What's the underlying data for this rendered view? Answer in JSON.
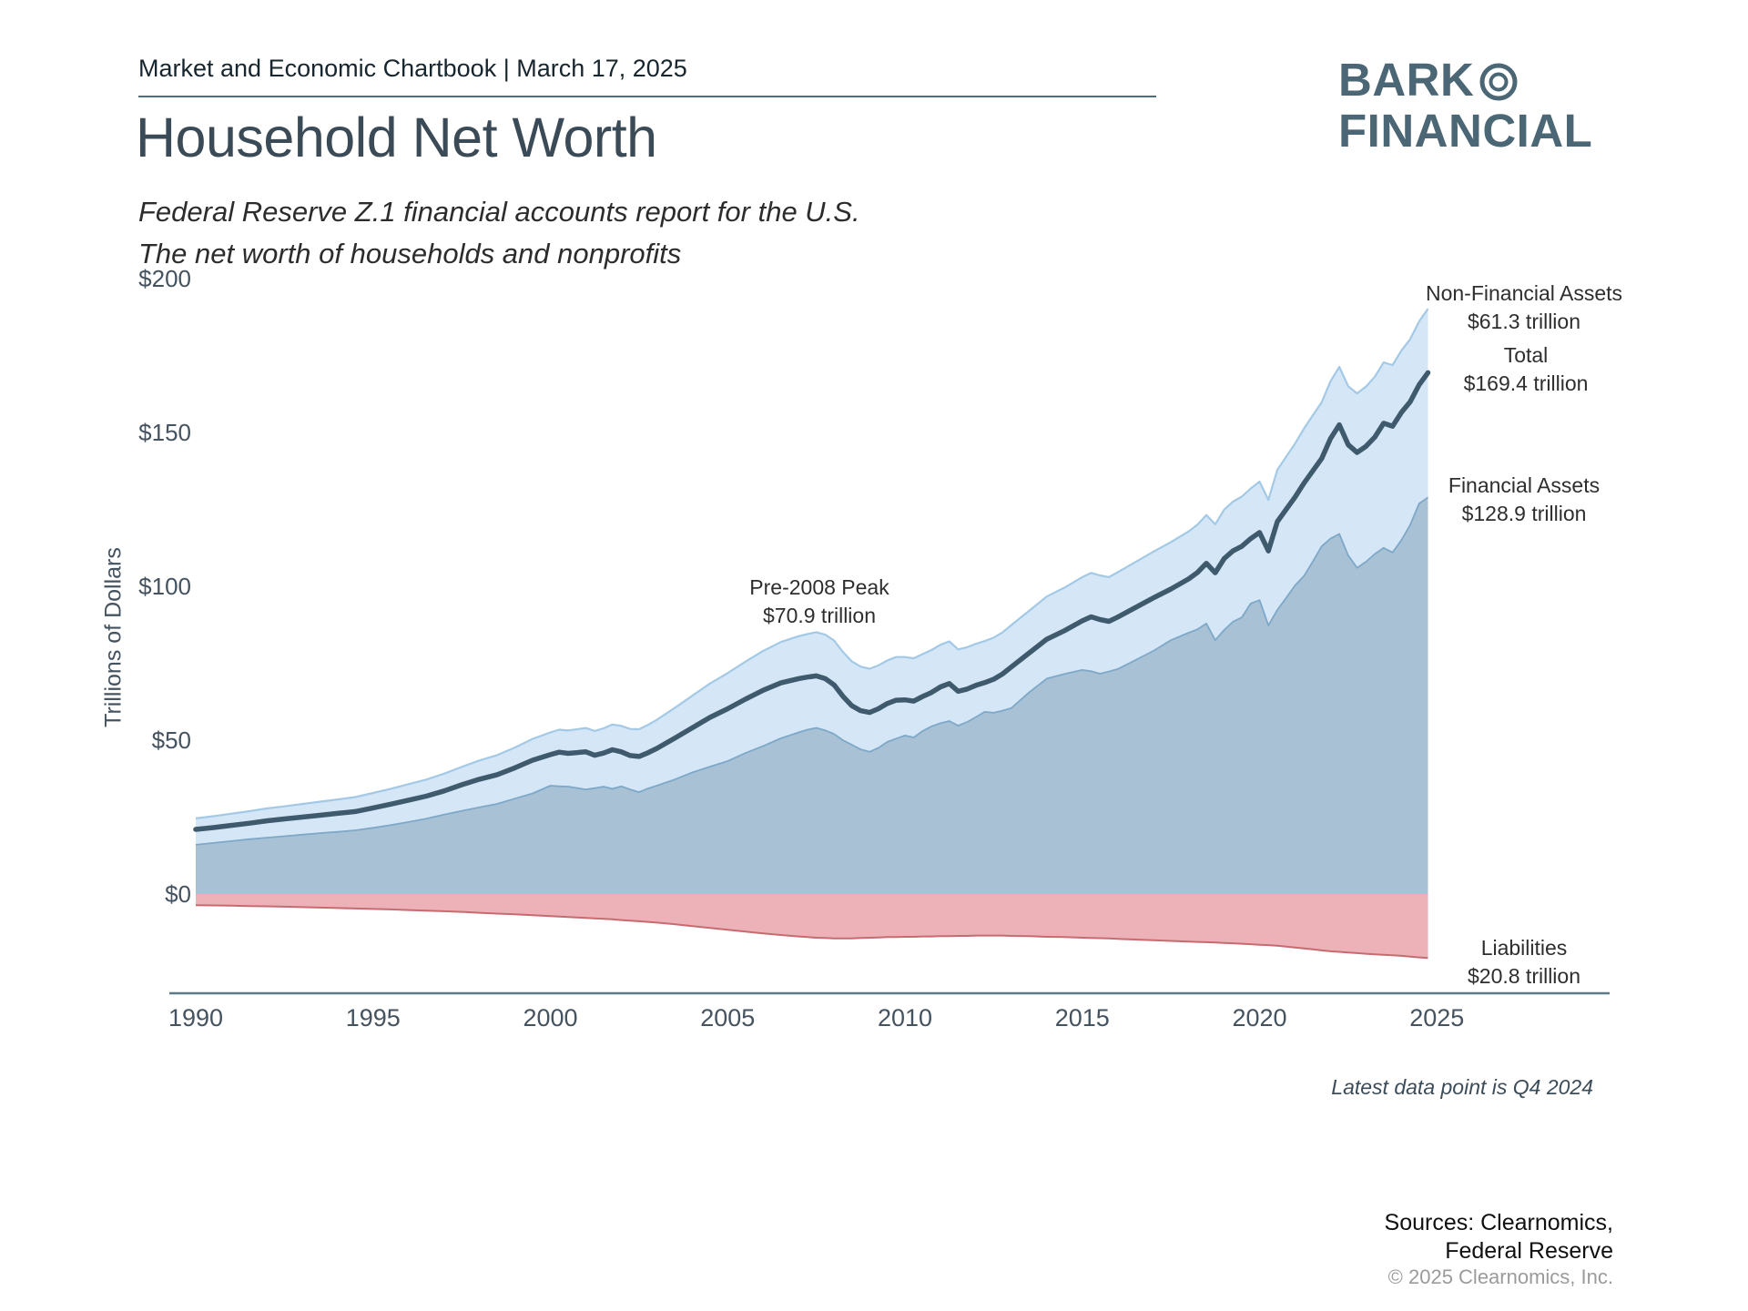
{
  "header": {
    "chartbook": "Market and Economic Chartbook | March 17, 2025",
    "logo_line1": "BARK",
    "logo_line2": "FINANCIAL"
  },
  "title": "Household Net Worth",
  "subtitle_line1": "Federal Reserve Z.1 financial accounts report for the U.S.",
  "subtitle_line2": "The net worth of households and nonprofits",
  "footer": {
    "latest_note": "Latest data point is Q4 2024",
    "sources_line1": "Sources: Clearnomics,",
    "sources_line2": "Federal Reserve",
    "copyright": "© 2025 Clearnomics, Inc."
  },
  "chart_data": {
    "type": "area",
    "title": "Household Net Worth",
    "xlabel": "",
    "ylabel": "Trillions of Dollars",
    "units": "trillions of U.S. dollars",
    "xlim": [
      1990,
      2025
    ],
    "ylim": [
      -32,
      200
    ],
    "grid": false,
    "legend": false,
    "y_ticks": [
      {
        "value": 0,
        "label": "$0"
      },
      {
        "value": 50,
        "label": "$50"
      },
      {
        "value": 100,
        "label": "$100"
      },
      {
        "value": 150,
        "label": "$150"
      },
      {
        "value": 200,
        "label": "$200"
      }
    ],
    "x_ticks": [
      1990,
      1995,
      2000,
      2005,
      2010,
      2015,
      2020,
      2025
    ],
    "x": [
      1990,
      1990.5,
      1991,
      1991.5,
      1992,
      1992.5,
      1993,
      1993.5,
      1994,
      1994.5,
      1995,
      1995.5,
      1996,
      1996.5,
      1997,
      1997.5,
      1998,
      1998.5,
      1999,
      1999.5,
      2000,
      2000.25,
      2000.5,
      2001,
      2001.25,
      2001.5,
      2001.75,
      2002,
      2002.25,
      2002.5,
      2002.75,
      2003,
      2003.5,
      2004,
      2004.5,
      2005,
      2005.5,
      2006,
      2006.5,
      2007,
      2007.25,
      2007.5,
      2007.75,
      2008,
      2008.25,
      2008.5,
      2008.75,
      2009,
      2009.25,
      2009.5,
      2009.75,
      2010,
      2010.25,
      2010.5,
      2010.75,
      2011,
      2011.25,
      2011.5,
      2011.75,
      2012,
      2012.25,
      2012.5,
      2012.75,
      2013,
      2013.5,
      2014,
      2014.5,
      2015,
      2015.25,
      2015.5,
      2015.75,
      2016,
      2016.5,
      2017,
      2017.5,
      2018,
      2018.25,
      2018.5,
      2018.75,
      2019,
      2019.25,
      2019.5,
      2019.75,
      2020,
      2020.25,
      2020.5,
      2020.75,
      2021,
      2021.25,
      2021.5,
      2021.75,
      2022,
      2022.25,
      2022.5,
      2022.75,
      2023,
      2023.25,
      2023.5,
      2023.75,
      2024,
      2024.25,
      2024.5,
      2024.75
    ],
    "series": [
      {
        "key": "net_worth",
        "name": "Total",
        "latest_label": "$169.4 trillion",
        "values": [
          21.0,
          21.6,
          22.3,
          23.0,
          23.8,
          24.4,
          25.0,
          25.6,
          26.2,
          26.8,
          28.0,
          29.2,
          30.5,
          31.8,
          33.5,
          35.5,
          37.3,
          38.8,
          41.0,
          43.5,
          45.3,
          46.1,
          45.7,
          46.2,
          45.1,
          45.8,
          46.9,
          46.2,
          45.0,
          44.7,
          45.9,
          47.3,
          50.6,
          54.0,
          57.4,
          60.2,
          63.3,
          66.2,
          68.6,
          70.0,
          70.5,
          70.9,
          70.0,
          68.0,
          64.3,
          61.2,
          59.6,
          59.0,
          60.2,
          61.9,
          63.0,
          63.1,
          62.7,
          64.2,
          65.5,
          67.3,
          68.4,
          65.9,
          66.6,
          67.8,
          68.7,
          69.8,
          71.5,
          73.8,
          78.3,
          82.8,
          85.6,
          88.8,
          90.1,
          89.2,
          88.6,
          90.0,
          93.1,
          96.2,
          99.1,
          102.4,
          104.5,
          107.5,
          104.4,
          109.0,
          111.5,
          113.0,
          115.5,
          117.5,
          111.5,
          121.0,
          125.0,
          129.0,
          133.5,
          137.5,
          141.5,
          148.0,
          152.5,
          146.0,
          143.5,
          145.5,
          148.5,
          153.0,
          152.0,
          156.5,
          160.0,
          165.5,
          169.4
        ]
      },
      {
        "key": "financial_assets",
        "name": "Financial Assets",
        "latest_label": "$128.9 trillion",
        "values": [
          16.0,
          16.6,
          17.2,
          17.8,
          18.3,
          18.8,
          19.3,
          19.8,
          20.2,
          20.7,
          21.5,
          22.4,
          23.4,
          24.5,
          25.8,
          27.0,
          28.2,
          29.3,
          31.0,
          32.7,
          35.2,
          35.0,
          34.9,
          34.0,
          34.4,
          34.9,
          34.2,
          35.0,
          34.0,
          33.1,
          34.3,
          35.2,
          37.2,
          39.5,
          41.4,
          43.2,
          45.8,
          48.1,
          50.6,
          52.5,
          53.4,
          54.0,
          53.2,
          52.0,
          50.0,
          48.5,
          47.0,
          46.2,
          47.5,
          49.4,
          50.5,
          51.5,
          50.9,
          53.0,
          54.5,
          55.5,
          56.2,
          54.7,
          55.9,
          57.5,
          59.2,
          58.9,
          59.6,
          60.4,
          65.5,
          70.0,
          71.5,
          72.8,
          72.4,
          71.6,
          72.3,
          73.1,
          76.0,
          79.0,
          82.5,
          84.9,
          86.0,
          87.9,
          82.5,
          85.8,
          88.5,
          89.9,
          94.4,
          95.5,
          87.3,
          92.3,
          96.2,
          100.3,
          103.3,
          108.0,
          113.0,
          115.5,
          117.0,
          110.0,
          106.0,
          108.0,
          110.5,
          112.5,
          111.0,
          115.0,
          120.0,
          126.9,
          128.9
        ]
      },
      {
        "key": "liabilities",
        "name": "Liabilities",
        "latest_label": "$20.8 trillion",
        "plotted_as": "negative",
        "values": [
          3.6,
          3.7,
          3.8,
          3.9,
          4.0,
          4.1,
          4.25,
          4.4,
          4.55,
          4.7,
          4.85,
          5.0,
          5.2,
          5.4,
          5.6,
          5.8,
          6.1,
          6.35,
          6.6,
          6.9,
          7.2,
          7.3,
          7.45,
          7.75,
          7.9,
          8.05,
          8.2,
          8.45,
          8.65,
          8.85,
          9.05,
          9.3,
          9.8,
          10.4,
          11.0,
          11.6,
          12.2,
          12.8,
          13.3,
          13.8,
          14.0,
          14.2,
          14.3,
          14.4,
          14.4,
          14.4,
          14.3,
          14.2,
          14.1,
          14.0,
          14.0,
          13.9,
          13.9,
          13.8,
          13.8,
          13.7,
          13.7,
          13.6,
          13.6,
          13.5,
          13.5,
          13.5,
          13.5,
          13.6,
          13.7,
          13.9,
          14.0,
          14.2,
          14.25,
          14.35,
          14.4,
          14.55,
          14.8,
          15.0,
          15.25,
          15.45,
          15.55,
          15.65,
          15.75,
          15.9,
          16.0,
          16.15,
          16.3,
          16.5,
          16.6,
          16.8,
          17.1,
          17.4,
          17.7,
          18.0,
          18.3,
          18.6,
          18.8,
          19.0,
          19.2,
          19.4,
          19.6,
          19.75,
          19.9,
          20.1,
          20.35,
          20.6,
          20.8
        ]
      }
    ],
    "derived": {
      "total_assets": "net_worth + liabilities (top of light blue area)",
      "non_financial_assets_latest": "$61.3 trillion"
    },
    "annotations": {
      "pre2008": {
        "label": "Pre-2008 Peak",
        "value": "$70.9 trillion"
      },
      "non_financial": {
        "label": "Non-Financial Assets",
        "value": "$61.3 trillion"
      },
      "total": {
        "label": "Total",
        "value": "$169.4 trillion"
      },
      "financial": {
        "label": "Financial Assets",
        "value": "$128.9 trillion"
      },
      "liabilities": {
        "label": "Liabilities",
        "value": "$20.8 trillion"
      }
    },
    "colors": {
      "total_assets_fill": "#d5e7f7",
      "total_assets_stroke": "#a3c9e6",
      "financial_fill": "#a9c1d5",
      "financial_stroke": "#7ea8c8",
      "net_worth_line": "#3f5a6c",
      "liabilities_fill": "#ecb2b8",
      "liabilities_stroke": "#c96a70",
      "axis_line": "#5d7886"
    }
  }
}
